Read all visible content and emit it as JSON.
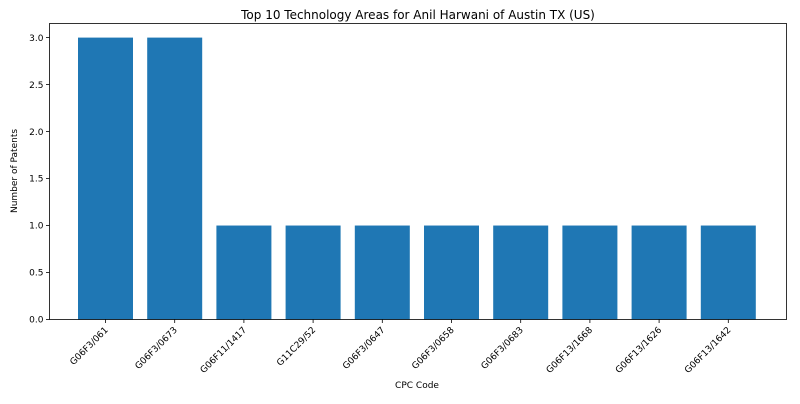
{
  "chart_data": {
    "type": "bar",
    "title": "Top 10 Technology Areas for Anil Harwani of Austin TX (US)",
    "xlabel": "CPC Code",
    "ylabel": "Number of Patents",
    "categories": [
      "G06F3/061",
      "G06F3/0673",
      "G06F11/1417",
      "G11C29/52",
      "G06F3/0647",
      "G06F3/0658",
      "G06F3/0683",
      "G06F13/1668",
      "G06F13/1626",
      "G06F13/1642"
    ],
    "values": [
      3,
      3,
      1,
      1,
      1,
      1,
      1,
      1,
      1,
      1
    ],
    "ylim": [
      0,
      3.15
    ],
    "yticks": [
      "0.0",
      "0.5",
      "1.0",
      "1.5",
      "2.0",
      "2.5",
      "3.0"
    ],
    "grid": false,
    "bar_color": "#1f77b4"
  }
}
